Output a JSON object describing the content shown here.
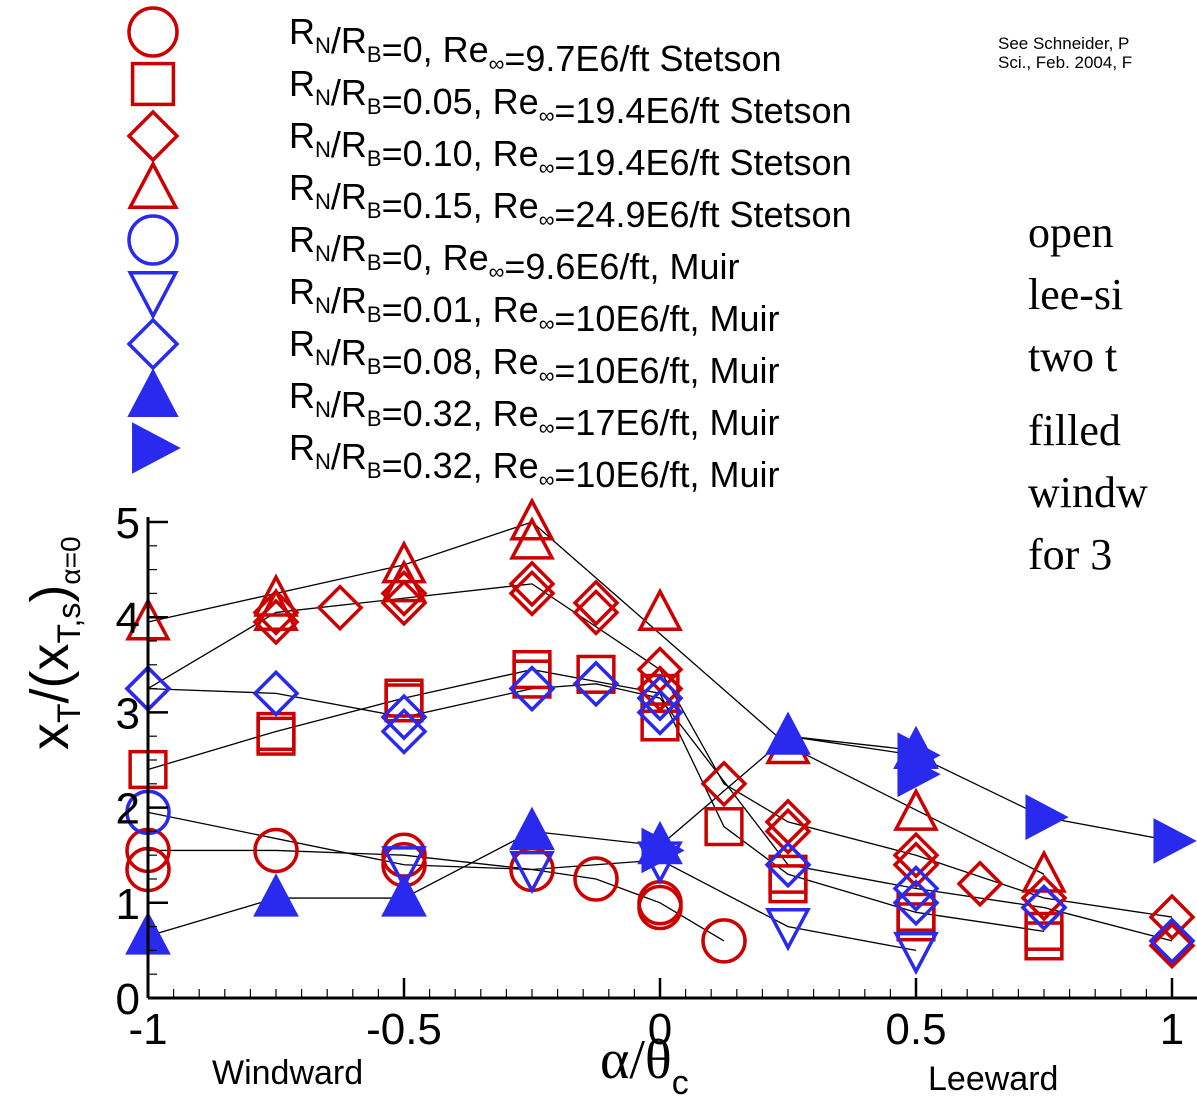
{
  "chart_data": {
    "type": "scatter",
    "xlim": [
      -1,
      1
    ],
    "ylim": [
      0,
      5
    ],
    "x_ticks": [
      "-1",
      "-0.5",
      "0",
      "0.5",
      "1"
    ],
    "y_ticks": [
      "0",
      "1",
      "2",
      "3",
      "4",
      "5"
    ],
    "ylabel": {
      "main": "x",
      "sub1": "T",
      "mid": "/(x",
      "sub2": "T,s",
      "close": ")",
      "sub3": "α=0"
    },
    "xlabel": {
      "main": "α/θ",
      "sub": "c"
    },
    "x_annotations": {
      "left": "Windward",
      "right": "Leeward"
    },
    "reference_note": [
      "See Schneider, P",
      "Sci., Feb. 2004, F"
    ],
    "side_notes": [
      "open",
      "lee-si",
      "two t",
      "filled",
      "windw",
      "for 3"
    ],
    "colors": {
      "red": "#cc0000",
      "blue": "#2a2aee",
      "line": "#000000"
    },
    "legend": [
      {
        "ratio": "0",
        "re": "9.7E6/ft",
        "source": "Stetson",
        "marker": "circle",
        "color": "red",
        "filled": false
      },
      {
        "ratio": "0.05",
        "re": "19.4E6/ft",
        "source": "Stetson",
        "marker": "square",
        "color": "red",
        "filled": false
      },
      {
        "ratio": "0.10",
        "re": "19.4E6/ft",
        "source": "Stetson",
        "marker": "diamond",
        "color": "red",
        "filled": false
      },
      {
        "ratio": "0.15",
        "re": "24.9E6/ft",
        "source": "Stetson",
        "marker": "triangle-up",
        "color": "red",
        "filled": false
      },
      {
        "ratio": "0",
        "re": "9.6E6/ft,",
        "source": "Muir",
        "marker": "circle",
        "color": "blue",
        "filled": false
      },
      {
        "ratio": "0.01",
        "re": "10E6/ft,",
        "source": "Muir",
        "marker": "triangle-down",
        "color": "blue",
        "filled": false
      },
      {
        "ratio": "0.08",
        "re": "10E6/ft,",
        "source": "Muir",
        "marker": "diamond",
        "color": "blue",
        "filled": false
      },
      {
        "ratio": "0.32",
        "re": "17E6/ft,",
        "source": "Muir",
        "marker": "triangle-up",
        "color": "blue",
        "filled": true
      },
      {
        "ratio": "0.32",
        "re": "10E6/ft,",
        "source": "Muir",
        "marker": "triangle-right",
        "color": "blue",
        "filled": true
      }
    ],
    "series": [
      {
        "marker": "circle",
        "color": "red",
        "filled": false,
        "x": [
          -1,
          -1,
          -0.75,
          -0.5,
          -0.5,
          -0.25,
          -0.125,
          0,
          0,
          0.125
        ],
        "y": [
          1.35,
          1.55,
          1.55,
          1.5,
          1.4,
          1.35,
          1.25,
          1.0,
          0.95,
          0.6
        ]
      },
      {
        "marker": "square",
        "color": "red",
        "filled": false,
        "x": [
          -1,
          -0.75,
          -0.75,
          -0.5,
          -0.5,
          -0.25,
          -0.25,
          -0.125,
          0,
          0,
          0.125,
          0.25,
          0.25,
          0.5,
          0.5,
          0.75,
          0.75
        ],
        "y": [
          2.4,
          2.8,
          2.75,
          3.15,
          3.1,
          3.45,
          3.35,
          3.4,
          3.2,
          2.9,
          1.8,
          1.3,
          1.2,
          0.9,
          0.8,
          0.7,
          0.6
        ]
      },
      {
        "marker": "diamond",
        "color": "red",
        "filled": false,
        "x": [
          -1,
          -0.75,
          -0.75,
          -0.625,
          -0.5,
          -0.5,
          -0.25,
          -0.25,
          -0.125,
          -0.125,
          0,
          0,
          0.125,
          0.25,
          0.25,
          0.5,
          0.5,
          0.625,
          0.75,
          0.75,
          1,
          1
        ],
        "y": [
          3.25,
          4.05,
          3.95,
          4.1,
          4.25,
          4.15,
          4.35,
          4.25,
          4.15,
          4.05,
          3.45,
          3.25,
          2.25,
          1.85,
          1.75,
          1.5,
          1.4,
          1.2,
          1.05,
          0.95,
          0.85,
          0.55
        ]
      },
      {
        "marker": "triangle-up",
        "color": "red",
        "filled": false,
        "x": [
          -1,
          -0.75,
          -0.75,
          -0.5,
          -0.5,
          -0.25,
          -0.25,
          0,
          0.25,
          0.5,
          0.75
        ],
        "y": [
          3.95,
          4.2,
          4.05,
          4.55,
          4.35,
          5.0,
          4.8,
          4.05,
          2.65,
          1.95,
          1.3
        ]
      },
      {
        "marker": "circle",
        "color": "blue",
        "filled": false,
        "x": [
          -1
        ],
        "y": [
          1.95
        ]
      },
      {
        "marker": "triangle-down",
        "color": "blue",
        "filled": false,
        "x": [
          -0.5,
          -0.25,
          0,
          0.25,
          0.5
        ],
        "y": [
          1.4,
          1.35,
          1.45,
          0.75,
          0.5
        ]
      },
      {
        "marker": "diamond",
        "color": "blue",
        "filled": false,
        "x": [
          -1,
          -0.75,
          -0.5,
          -0.5,
          -0.25,
          -0.125,
          0,
          0,
          0.25,
          0.5,
          0.5,
          0.75,
          1
        ],
        "y": [
          3.25,
          3.2,
          2.95,
          2.8,
          3.25,
          3.3,
          3.15,
          3.0,
          1.4,
          1.15,
          1.0,
          0.95,
          0.6
        ]
      },
      {
        "marker": "triangle-up",
        "color": "blue",
        "filled": true,
        "x": [
          -1,
          -0.75,
          -0.5,
          -0.25,
          0,
          0.25,
          0.5
        ],
        "y": [
          0.65,
          1.05,
          1.05,
          1.75,
          1.6,
          2.75,
          2.6
        ]
      },
      {
        "marker": "triangle-right",
        "color": "blue",
        "filled": true,
        "x": [
          0,
          0.5,
          0.5,
          0.75,
          1
        ],
        "y": [
          1.55,
          2.55,
          2.35,
          1.9,
          1.65
        ]
      }
    ],
    "connectors": [
      {
        "x": [
          -1,
          -0.5,
          -0.25,
          0.25,
          0.75
        ],
        "y": [
          3.95,
          4.55,
          5.0,
          2.65,
          1.3
        ]
      },
      {
        "x": [
          -1,
          -0.75,
          -0.25,
          0,
          0.125,
          0.25,
          0.5,
          0.75,
          1
        ],
        "y": [
          3.25,
          4.05,
          4.35,
          3.45,
          2.25,
          1.85,
          1.5,
          1.05,
          0.85
        ]
      },
      {
        "x": [
          -1,
          -0.75,
          -0.5,
          -0.25,
          0,
          0.125,
          0.25,
          0.5,
          0.75
        ],
        "y": [
          2.4,
          2.8,
          3.15,
          3.45,
          3.2,
          1.8,
          1.3,
          0.9,
          0.7
        ]
      },
      {
        "x": [
          -1,
          -0.75,
          -0.5,
          -0.25,
          -0.125,
          0,
          0.125
        ],
        "y": [
          1.55,
          1.55,
          1.5,
          1.35,
          1.25,
          1.0,
          0.6
        ]
      },
      {
        "x": [
          -1,
          -0.75,
          -0.5,
          -0.25,
          -0.125,
          0,
          0.25,
          0.5,
          0.75,
          1
        ],
        "y": [
          3.25,
          3.2,
          2.95,
          3.25,
          3.3,
          3.15,
          1.4,
          1.15,
          0.95,
          0.6
        ]
      },
      {
        "x": [
          -1,
          -0.5,
          -0.25,
          0,
          0.25,
          0.5
        ],
        "y": [
          1.95,
          1.4,
          1.35,
          1.45,
          0.75,
          0.5
        ]
      },
      {
        "x": [
          -1,
          -0.75,
          -0.5,
          -0.25,
          0,
          0.25,
          0.5
        ],
        "y": [
          0.65,
          1.05,
          1.05,
          1.75,
          1.6,
          2.75,
          2.6
        ]
      },
      {
        "x": [
          0.25,
          0.5,
          0.75,
          1
        ],
        "y": [
          2.75,
          2.55,
          1.9,
          1.65
        ]
      }
    ]
  }
}
